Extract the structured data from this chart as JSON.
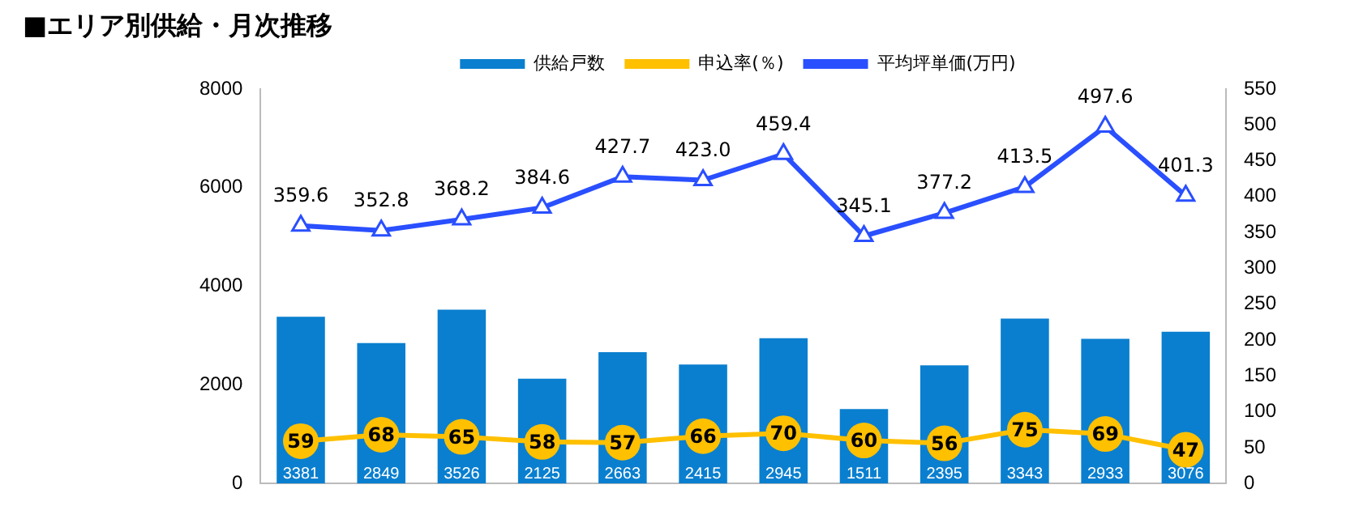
{
  "chart_data": {
    "type": "bar",
    "title": "■エリア別供給・月次推移",
    "categories": [
      null,
      null,
      null,
      null,
      null,
      null,
      null,
      null,
      null,
      null,
      null,
      null
    ],
    "series": [
      {
        "name": "供給戸数",
        "type": "bar",
        "color": "#0a7fcf",
        "values": [
          3381,
          2849,
          3526,
          2125,
          2663,
          2415,
          2945,
          1511,
          2395,
          3343,
          2933,
          3076
        ]
      },
      {
        "name": "申込率(％)",
        "type": "line",
        "axis": "y2",
        "marker": "circle",
        "color": "#ffc000",
        "values": [
          59,
          68,
          65,
          58,
          57,
          66,
          70,
          60,
          56,
          75,
          69,
          47
        ]
      },
      {
        "name": "平均坪単価(万円)",
        "type": "line",
        "axis": "y2",
        "marker": "triangle",
        "color": "#2a4fff",
        "values": [
          359.6,
          352.8,
          368.2,
          384.6,
          427.7,
          423.0,
          459.4,
          345.1,
          377.2,
          413.5,
          497.6,
          401.3
        ],
        "value_labels": [
          "359.6",
          "352.8",
          "368.2",
          "384.6",
          "427.7",
          "423.0",
          "459.4",
          "345.1",
          "377.2",
          "413.5",
          "497.6",
          "401.3"
        ]
      }
    ],
    "ylim": [
      0,
      8000
    ],
    "yticks": [
      0,
      2000,
      4000,
      6000,
      8000
    ],
    "y2lim": [
      0,
      550
    ],
    "y2ticks": [
      0,
      50,
      100,
      150,
      200,
      250,
      300,
      350,
      400,
      450,
      500,
      550
    ],
    "data_labels": true,
    "legend": "top",
    "grid": false
  }
}
